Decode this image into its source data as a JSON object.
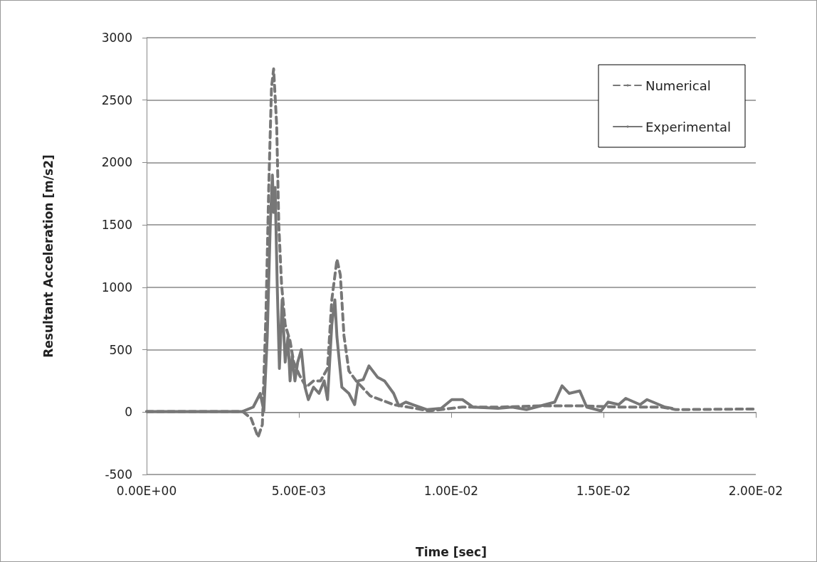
{
  "chart_data": {
    "type": "line",
    "xlabel": "Time [sec]",
    "ylabel": "Resultant Acceleration [m/s2]",
    "xlim": [
      0,
      0.02
    ],
    "xticks": [
      {
        "value": 0,
        "label": "0.00E+00"
      },
      {
        "value": 0.005,
        "label": "5.00E-03"
      },
      {
        "value": 0.01,
        "label": "1.00E-02"
      },
      {
        "value": 0.015,
        "label": "1.50E-02"
      },
      {
        "value": 0.02,
        "label": "2.00E-02"
      }
    ],
    "ylim": [
      -500,
      3000
    ],
    "yticks": [
      -500,
      0,
      500,
      1000,
      1500,
      2000,
      2500,
      3000
    ],
    "grid": "y",
    "legend": "top right",
    "marker": "none",
    "series": [
      {
        "name": "Numerical",
        "color": "#777777",
        "line_style": "dashed",
        "x": [
          0,
          0.00221,
          0.00315,
          0.00343,
          0.00366,
          0.0038,
          0.00392,
          0.00401,
          0.0041,
          0.00417,
          0.00427,
          0.00434,
          0.00443,
          0.00455,
          0.00471,
          0.00483,
          0.00501,
          0.00524,
          0.00548,
          0.00571,
          0.00594,
          0.00608,
          0.00625,
          0.00636,
          0.00648,
          0.00664,
          0.00688,
          0.00734,
          0.00811,
          0.00928,
          0.01037,
          0.01154,
          0.01294,
          0.01434,
          0.0155,
          0.0169,
          0.01737,
          0.02
        ],
        "values": [
          5,
          5,
          5,
          -50,
          -200,
          -100,
          800,
          1800,
          2600,
          2750,
          2300,
          1500,
          1025,
          700,
          570,
          400,
          300,
          200,
          250,
          250,
          350,
          900,
          1224,
          1100,
          612,
          330,
          250,
          130,
          60,
          10,
          40,
          40,
          50,
          50,
          40,
          40,
          20,
          25
        ]
      },
      {
        "name": "Experimental",
        "color": "#777777",
        "line_style": "solid",
        "x": [
          0,
          0.00315,
          0.0035,
          0.00373,
          0.00385,
          0.00396,
          0.00406,
          0.00413,
          0.00417,
          0.00422,
          0.00429,
          0.00436,
          0.00445,
          0.00455,
          0.00464,
          0.00471,
          0.00478,
          0.00487,
          0.00496,
          0.00508,
          0.0052,
          0.00531,
          0.00548,
          0.00566,
          0.00583,
          0.00594,
          0.00608,
          0.00618,
          0.00625,
          0.00641,
          0.00664,
          0.00683,
          0.00695,
          0.00711,
          0.0073,
          0.00758,
          0.00781,
          0.00811,
          0.00828,
          0.00851,
          0.00874,
          0.00921,
          0.00967,
          0.01002,
          0.01037,
          0.01072,
          0.01154,
          0.012,
          0.01247,
          0.01294,
          0.0134,
          0.01364,
          0.01387,
          0.01422,
          0.01445,
          0.01492,
          0.01515,
          0.0155,
          0.01573,
          0.0162,
          0.01643,
          0.01702,
          0.01725
        ],
        "values": [
          5,
          5,
          40,
          150,
          10,
          600,
          1500,
          1900,
          1600,
          1800,
          1000,
          350,
          900,
          400,
          600,
          250,
          450,
          250,
          400,
          500,
          200,
          100,
          200,
          150,
          250,
          100,
          700,
          900,
          600,
          200,
          150,
          60,
          250,
          260,
          370,
          280,
          250,
          150,
          50,
          80,
          60,
          20,
          30,
          100,
          100,
          40,
          30,
          40,
          20,
          50,
          80,
          210,
          150,
          170,
          40,
          10,
          80,
          60,
          110,
          60,
          100,
          40,
          30
        ]
      }
    ]
  }
}
